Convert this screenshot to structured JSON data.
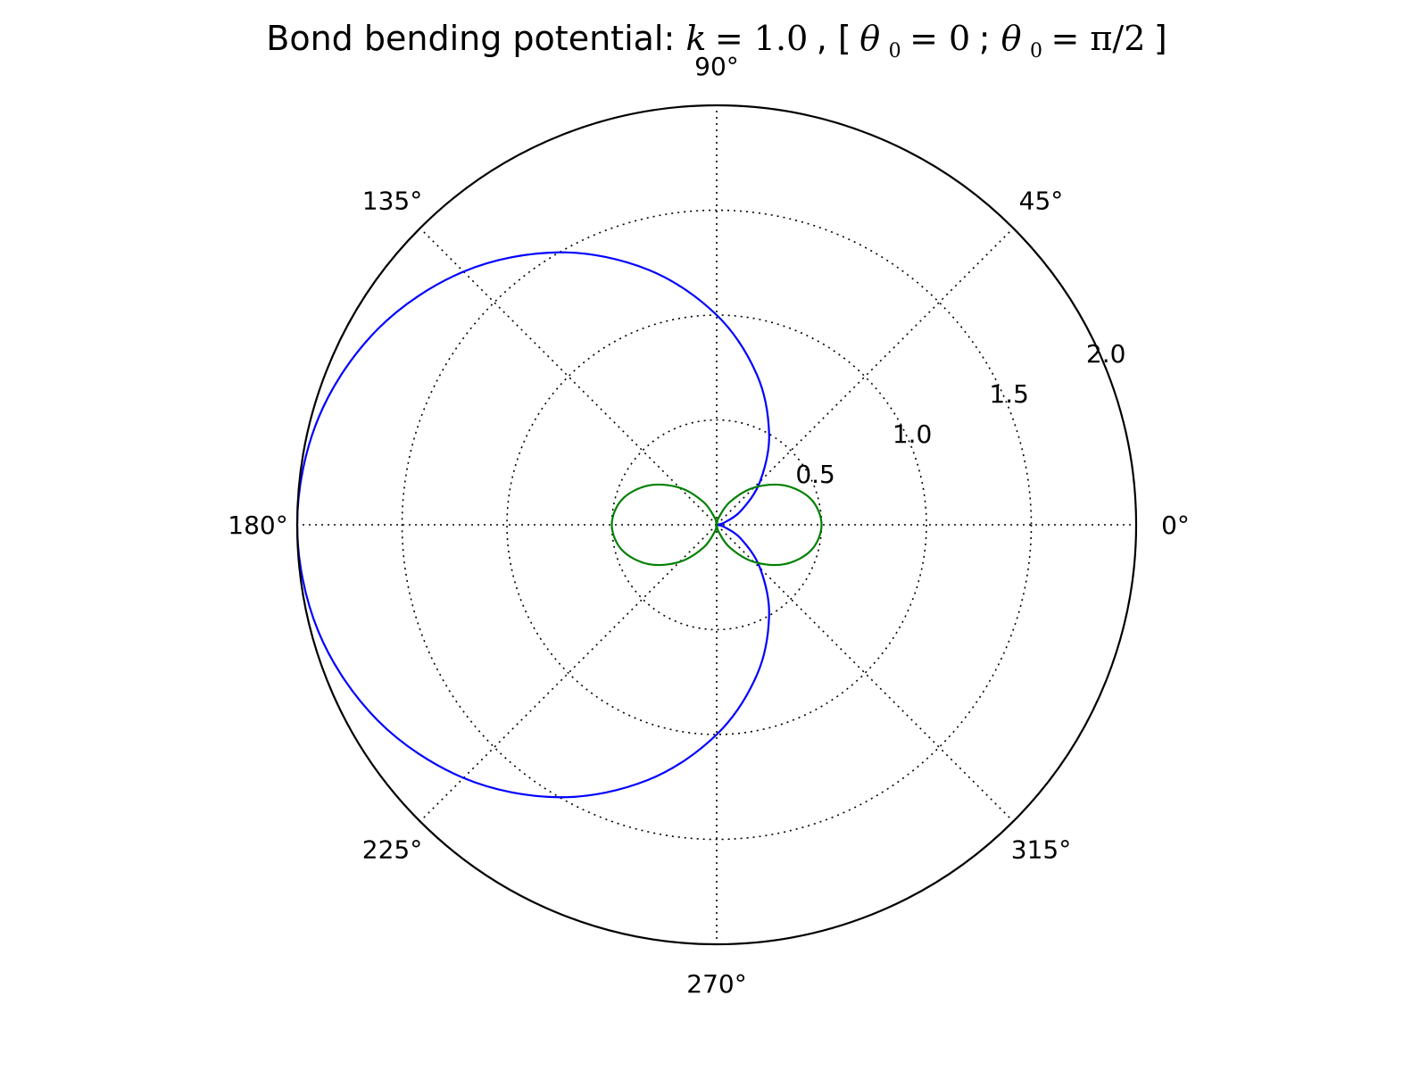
{
  "title": {
    "text_plain_1": "Bond bending potential: ",
    "k_symbol": "k",
    "k_eq": " = 1.0",
    "sep_1": ", [",
    "theta_symbol_a": "θ",
    "theta_sub_a": "0",
    "theta_eq_a": " = 0",
    "sep_2": "; ",
    "theta_symbol_b": "θ",
    "theta_sub_b": "0",
    "theta_eq_b": " = π/2",
    "sep_3": "]"
  },
  "chart_data": {
    "type": "line",
    "projection": "polar",
    "title": "Bond bending potential: k = 1.0, [θ0 = 0; θ0 = π/2]",
    "rlim": [
      0,
      2.0
    ],
    "r_ticks": [
      0.5,
      1.0,
      1.5,
      2.0
    ],
    "r_tick_labels": [
      "0.5",
      "1.0",
      "1.5",
      "2.0"
    ],
    "r_label_angle_deg": 22.5,
    "theta_ticks_deg": [
      0,
      45,
      90,
      135,
      180,
      225,
      270,
      315
    ],
    "theta_tick_labels": [
      "0°",
      "45°",
      "90°",
      "135°",
      "180°",
      "225°",
      "270°",
      "315°"
    ],
    "grid": true,
    "series": [
      {
        "color": "#0000ff",
        "theta_deg": [
          0,
          15,
          30,
          45,
          60,
          75,
          90,
          105,
          120,
          135,
          150,
          165,
          180,
          195,
          210,
          225,
          240,
          255,
          270,
          285,
          300,
          315,
          330,
          345,
          360
        ],
        "r": [
          0.0,
          0.034,
          0.134,
          0.293,
          0.5,
          0.741,
          1.0,
          1.259,
          1.5,
          1.707,
          1.866,
          1.966,
          2.0,
          1.966,
          1.866,
          1.707,
          1.5,
          1.259,
          1.0,
          0.741,
          0.5,
          0.293,
          0.134,
          0.034,
          0.0
        ]
      },
      {
        "color": "#008000",
        "theta_deg": [
          0,
          15,
          30,
          45,
          60,
          75,
          90,
          105,
          120,
          135,
          150,
          165,
          180,
          195,
          210,
          225,
          240,
          255,
          270,
          285,
          300,
          315,
          330,
          345,
          360
        ],
        "r": [
          0.5,
          0.467,
          0.375,
          0.25,
          0.125,
          0.033,
          0.0,
          0.033,
          0.125,
          0.25,
          0.375,
          0.467,
          0.5,
          0.467,
          0.375,
          0.25,
          0.125,
          0.033,
          0.0,
          0.033,
          0.125,
          0.25,
          0.375,
          0.467,
          0.5
        ]
      }
    ]
  }
}
